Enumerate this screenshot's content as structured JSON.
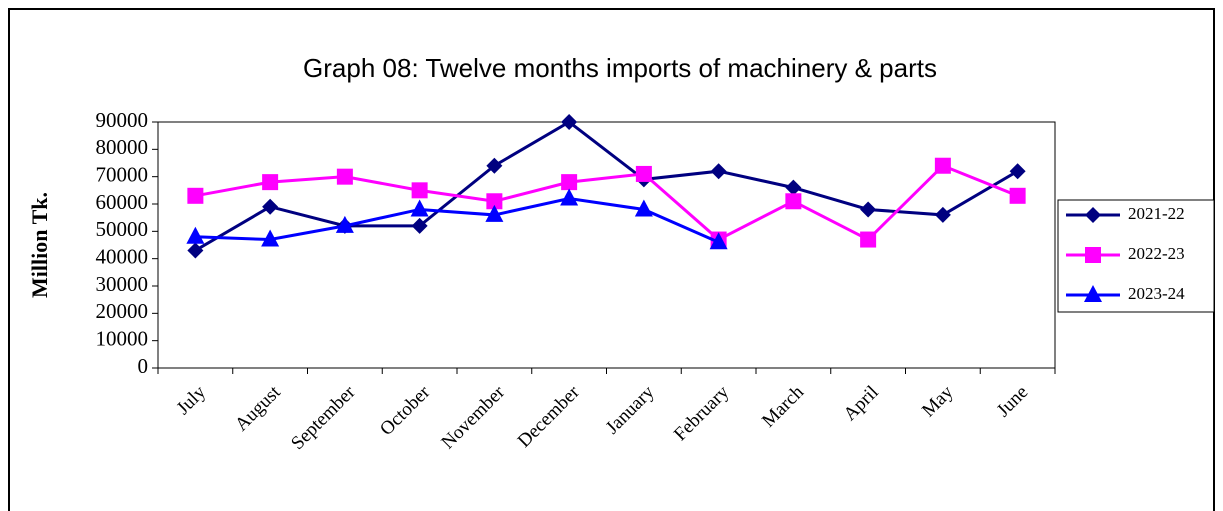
{
  "chart_data": {
    "type": "line",
    "title": "Graph 08: Twelve months imports of  machinery & parts",
    "y_label": "Million Tk.",
    "categories": [
      "July",
      "August",
      "September",
      "October",
      "November",
      "December",
      "January",
      "February",
      "March",
      "April",
      "May",
      "June"
    ],
    "series": [
      {
        "name": "2021-22",
        "color": "#000080",
        "marker": "diamond",
        "values": [
          43000,
          59000,
          52000,
          52000,
          74000,
          90000,
          69000,
          72000,
          66000,
          58000,
          56000,
          72000
        ]
      },
      {
        "name": "2022-23",
        "color": "#ff00ff",
        "marker": "square",
        "values": [
          63000,
          68000,
          70000,
          65000,
          61000,
          68000,
          71000,
          47000,
          61000,
          47000,
          74000,
          63000
        ]
      },
      {
        "name": "2023-24",
        "color": "#0000ff",
        "marker": "triangle",
        "values": [
          48000,
          47000,
          52000,
          58000,
          56000,
          62000,
          58000,
          46000,
          null,
          null,
          null,
          null
        ]
      }
    ],
    "ylim": [
      0,
      90000
    ],
    "yticks": [
      0,
      10000,
      20000,
      30000,
      40000,
      50000,
      60000,
      70000,
      80000,
      90000
    ],
    "grid": false,
    "legend": "right"
  }
}
